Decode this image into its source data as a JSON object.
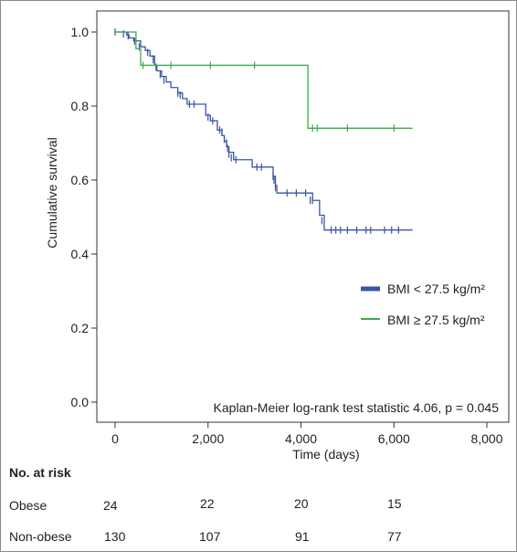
{
  "chart_data": {
    "type": "line",
    "subtype": "kaplan-meier",
    "xlabel": "Time (days)",
    "ylabel": "Cumulative survival",
    "xlim": [
      0,
      8000
    ],
    "ylim": [
      0,
      1.0
    ],
    "x_ticks": [
      0,
      2000,
      4000,
      6000,
      8000
    ],
    "x_tick_labels": [
      "0",
      "2,000",
      "4,000",
      "6,000",
      "8,000"
    ],
    "y_ticks": [
      0,
      0.2,
      0.4,
      0.6,
      0.8,
      1.0
    ],
    "y_tick_labels": [
      "0.0",
      "0.2",
      "0.4",
      "0.6",
      "0.8",
      "1.0"
    ],
    "grid": false,
    "legend_position": "right",
    "annotation": "Kaplan-Meier log-rank test statistic 4.06, p = 0.045",
    "series": [
      {
        "name": "BMI < 27.5 kg/m²",
        "color": "#3a55a4",
        "steps": [
          [
            0,
            1.0
          ],
          [
            250,
            0.992
          ],
          [
            300,
            0.984
          ],
          [
            400,
            0.976
          ],
          [
            550,
            0.96
          ],
          [
            650,
            0.95
          ],
          [
            750,
            0.935
          ],
          [
            850,
            0.91
          ],
          [
            900,
            0.895
          ],
          [
            1000,
            0.88
          ],
          [
            1100,
            0.865
          ],
          [
            1200,
            0.85
          ],
          [
            1350,
            0.835
          ],
          [
            1450,
            0.82
          ],
          [
            1550,
            0.805
          ],
          [
            1950,
            0.775
          ],
          [
            2050,
            0.76
          ],
          [
            2200,
            0.735
          ],
          [
            2300,
            0.72
          ],
          [
            2350,
            0.705
          ],
          [
            2400,
            0.69
          ],
          [
            2450,
            0.675
          ],
          [
            2550,
            0.655
          ],
          [
            2950,
            0.635
          ],
          [
            3400,
            0.61
          ],
          [
            3450,
            0.585
          ],
          [
            3480,
            0.565
          ],
          [
            4250,
            0.545
          ],
          [
            4400,
            0.505
          ],
          [
            4500,
            0.465
          ],
          [
            6400,
            0.465
          ]
        ],
        "censors": [
          [
            0,
            1.0
          ],
          [
            180,
            0.995
          ],
          [
            280,
            0.99
          ],
          [
            420,
            0.975
          ],
          [
            520,
            0.96
          ],
          [
            700,
            0.945
          ],
          [
            820,
            0.925
          ],
          [
            880,
            0.905
          ],
          [
            970,
            0.885
          ],
          [
            1050,
            0.87
          ],
          [
            1350,
            0.835
          ],
          [
            1400,
            0.83
          ],
          [
            1600,
            0.805
          ],
          [
            1700,
            0.805
          ],
          [
            2000,
            0.77
          ],
          [
            2100,
            0.76
          ],
          [
            2250,
            0.735
          ],
          [
            2300,
            0.73
          ],
          [
            2350,
            0.71
          ],
          [
            2400,
            0.7
          ],
          [
            2420,
            0.685
          ],
          [
            2450,
            0.67
          ],
          [
            2500,
            0.66
          ],
          [
            2600,
            0.655
          ],
          [
            3050,
            0.635
          ],
          [
            3150,
            0.635
          ],
          [
            3400,
            0.61
          ],
          [
            3420,
            0.6
          ],
          [
            3450,
            0.58
          ],
          [
            3700,
            0.565
          ],
          [
            3900,
            0.565
          ],
          [
            4100,
            0.565
          ],
          [
            4200,
            0.545
          ],
          [
            4250,
            0.545
          ],
          [
            4450,
            0.49
          ],
          [
            4650,
            0.465
          ],
          [
            4750,
            0.465
          ],
          [
            4850,
            0.465
          ],
          [
            5000,
            0.465
          ],
          [
            5200,
            0.465
          ],
          [
            5400,
            0.465
          ],
          [
            5500,
            0.465
          ],
          [
            5800,
            0.465
          ],
          [
            5950,
            0.465
          ],
          [
            6100,
            0.465
          ]
        ]
      },
      {
        "name": "BMI ≥ 27.5 kg/m²",
        "color": "#3aaa4a",
        "steps": [
          [
            0,
            1.0
          ],
          [
            450,
            0.955
          ],
          [
            550,
            0.91
          ],
          [
            4150,
            0.74
          ],
          [
            6400,
            0.74
          ]
        ],
        "censors": [
          [
            600,
            0.91
          ],
          [
            1200,
            0.91
          ],
          [
            2050,
            0.91
          ],
          [
            3000,
            0.91
          ],
          [
            4250,
            0.74
          ],
          [
            4350,
            0.74
          ],
          [
            5000,
            0.74
          ],
          [
            6000,
            0.74
          ]
        ]
      }
    ],
    "risk_table": {
      "title": "No. at risk",
      "rows": [
        {
          "label": "Obese",
          "values": [
            "24",
            "22",
            "20",
            "15"
          ]
        },
        {
          "label": "Non-obese",
          "values": [
            "130",
            "107",
            "91",
            "77"
          ]
        }
      ]
    }
  }
}
